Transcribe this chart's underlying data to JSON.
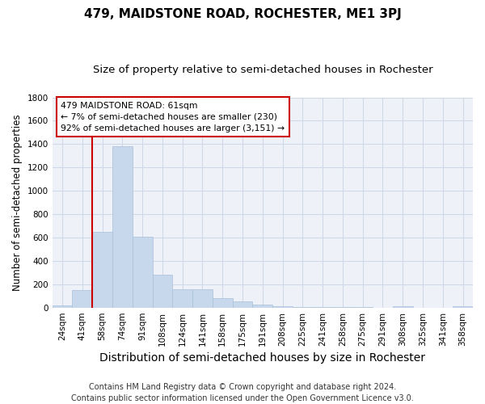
{
  "title": "479, MAIDSTONE ROAD, ROCHESTER, ME1 3PJ",
  "subtitle": "Size of property relative to semi-detached houses in Rochester",
  "xlabel": "Distribution of semi-detached houses by size in Rochester",
  "ylabel": "Number of semi-detached properties",
  "bar_labels": [
    "24sqm",
    "41sqm",
    "58sqm",
    "74sqm",
    "91sqm",
    "108sqm",
    "124sqm",
    "141sqm",
    "158sqm",
    "175sqm",
    "191sqm",
    "208sqm",
    "225sqm",
    "241sqm",
    "258sqm",
    "275sqm",
    "291sqm",
    "308sqm",
    "325sqm",
    "341sqm",
    "358sqm"
  ],
  "bar_values": [
    20,
    150,
    645,
    1380,
    605,
    280,
    155,
    155,
    80,
    50,
    25,
    10,
    5,
    5,
    5,
    5,
    0,
    10,
    0,
    0,
    10
  ],
  "bar_color": "#c8d8ec",
  "bar_edgecolor": "#a8c0d8",
  "vline_color": "#cc0000",
  "box_text": "479 MAIDSTONE ROAD: 61sqm\n← 7% of semi-detached houses are smaller (230)\n92% of semi-detached houses are larger (3,151) →",
  "box_edgecolor": "#cc0000",
  "ylim": [
    0,
    1800
  ],
  "yticks": [
    0,
    200,
    400,
    600,
    800,
    1000,
    1200,
    1400,
    1600,
    1800
  ],
  "grid_color": "#d0d8e8",
  "footnote": "Contains HM Land Registry data © Crown copyright and database right 2024.\nContains public sector information licensed under the Open Government Licence v3.0.",
  "fig_bg_color": "#ffffff",
  "plot_bg_color": "#eef2f8",
  "title_fontsize": 11,
  "subtitle_fontsize": 9.5,
  "ylabel_fontsize": 8.5,
  "xlabel_fontsize": 10,
  "tick_fontsize": 7.5,
  "footnote_fontsize": 7
}
